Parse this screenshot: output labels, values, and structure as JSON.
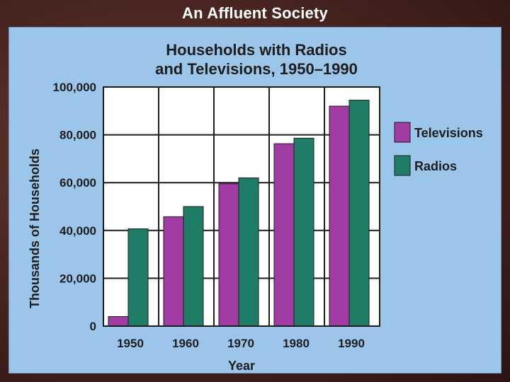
{
  "slide": {
    "title": "An Affluent Society"
  },
  "colors": {
    "televisions": "#a13ca4",
    "radios": "#1e7c67",
    "panel": "#9cc5ea"
  },
  "chart_data": {
    "type": "bar",
    "title_lines": [
      "Households with Radios",
      "and Televisions, 1950–1990"
    ],
    "xlabel": "Year",
    "ylabel": "Thousands of Households",
    "categories": [
      "1950",
      "1960",
      "1970",
      "1980",
      "1990"
    ],
    "series": [
      {
        "name": "Televisions",
        "values": [
          4000,
          45750,
          59550,
          76300,
          92000
        ]
      },
      {
        "name": "Radios",
        "values": [
          40700,
          50000,
          62000,
          78600,
          94500
        ]
      }
    ],
    "ylim": [
      0,
      100000
    ],
    "yticks": [
      0,
      20000,
      40000,
      60000,
      80000,
      100000
    ],
    "ytick_labels": [
      "0",
      "20,000",
      "40,000",
      "60,000",
      "80,000",
      "100,000"
    ],
    "grid": true,
    "legend_position": "right"
  }
}
